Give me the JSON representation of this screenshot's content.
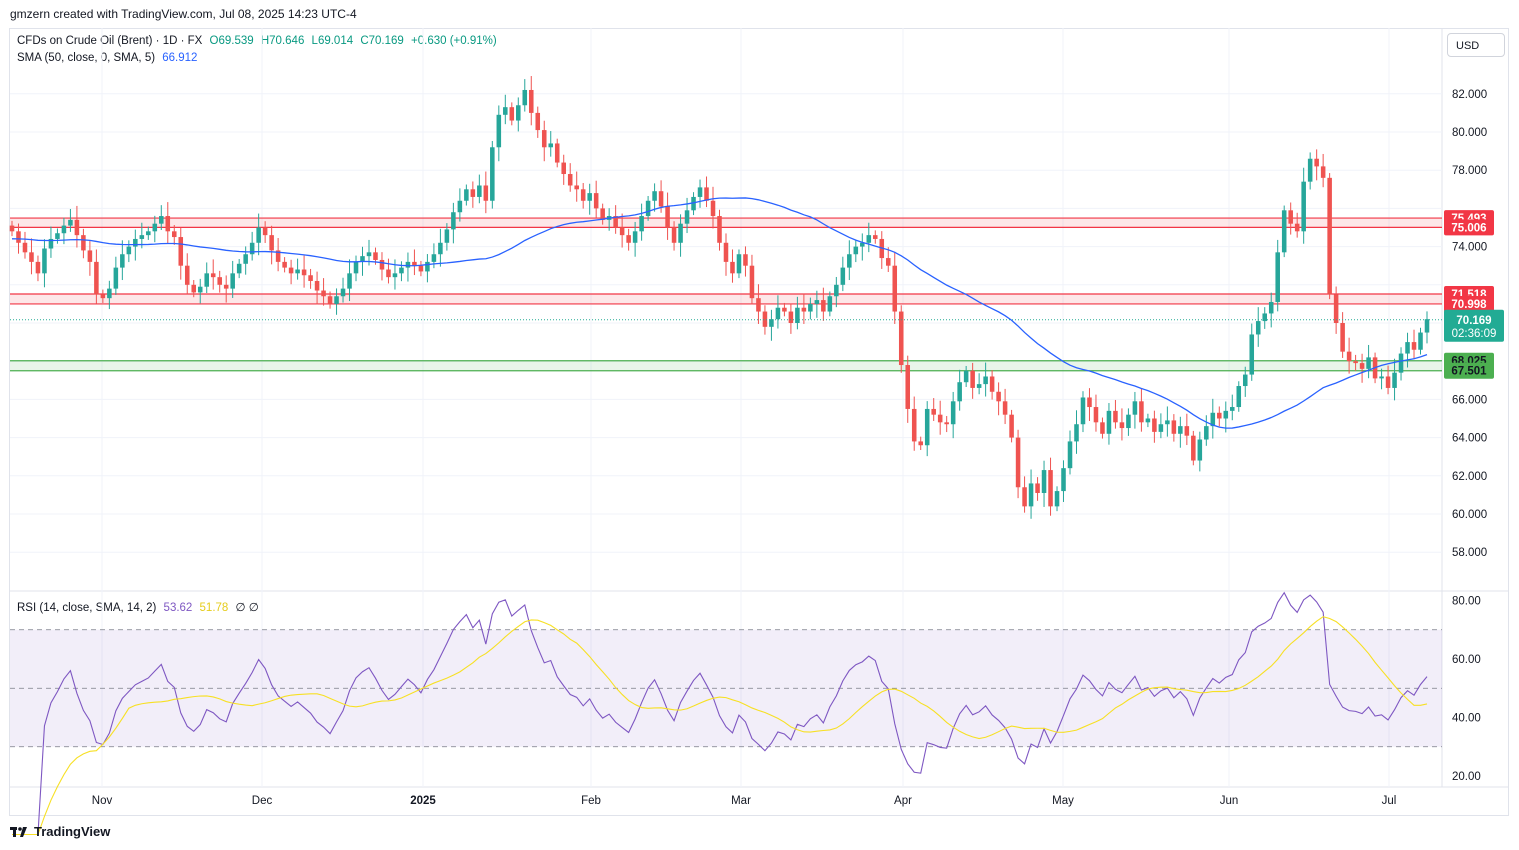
{
  "header": "gmzern created with TradingView.com, Jul 08, 2025 14:23 UTC-4",
  "legend": {
    "symbol": "CFDs on Crude Oil (Brent) · 1D · FX",
    "open": "O69.539",
    "high": "H70.646",
    "low": "L69.014",
    "close": "C70.169",
    "change": "+0.630 (+0.91%)",
    "sma_label": "SMA (50, close, 0, SMA, 5)",
    "sma_value": "66.912",
    "rsi_label": "RSI (14, close, SMA, 14, 2)",
    "rsi_value": "53.62",
    "rsi_ma_value": "51.78",
    "rsi_extra": "∅ ∅"
  },
  "currency": "USD",
  "footer": "TradingView",
  "colors": {
    "up": "#26a69a",
    "down": "#ef5350",
    "sma": "#2962ff",
    "rsi": "#7e57c2",
    "rsi_ma": "#f7e024",
    "resistance": "#f23645",
    "support": "#4caf50",
    "price_tag": "#22ab94"
  },
  "chart_data": [
    {
      "type": "candlestick",
      "title": "CFDs on Crude Oil (Brent)",
      "x_labels": [
        "Nov",
        "Dec",
        "2025",
        "Feb",
        "Mar",
        "Apr",
        "May",
        "Jun",
        "Jul"
      ],
      "y_ticks": [
        "82.000",
        "80.000",
        "78.000",
        "74.000",
        "66.000",
        "64.000",
        "62.000",
        "60.000",
        "58.000"
      ],
      "ylim": [
        56.0,
        85.5
      ],
      "grid": true,
      "closes": [
        74.8,
        74.2,
        73.7,
        73.2,
        72.6,
        73.9,
        74.4,
        74.7,
        75.1,
        75.4,
        74.6,
        73.8,
        73.2,
        71.5,
        71.3,
        71.8,
        72.9,
        73.6,
        74.0,
        74.4,
        74.6,
        74.8,
        75.2,
        75.6,
        74.8,
        74.5,
        73.0,
        72.0,
        71.6,
        71.9,
        72.6,
        72.4,
        72.0,
        71.8,
        72.6,
        73.1,
        73.6,
        74.2,
        75.0,
        74.6,
        73.8,
        73.2,
        72.9,
        72.6,
        72.8,
        72.5,
        72.2,
        71.7,
        71.4,
        71.0,
        71.4,
        71.8,
        72.6,
        73.2,
        73.5,
        73.7,
        73.3,
        72.8,
        72.4,
        72.6,
        72.9,
        73.2,
        73.0,
        72.7,
        73.2,
        73.6,
        74.2,
        74.9,
        75.8,
        76.4,
        77.0,
        76.6,
        77.2,
        76.4,
        79.2,
        80.9,
        81.3,
        80.6,
        81.4,
        82.2,
        81.0,
        80.1,
        79.2,
        79.4,
        78.4,
        77.8,
        77.2,
        77.0,
        76.4,
        76.8,
        76.0,
        75.4,
        75.6,
        75.0,
        74.6,
        74.2,
        74.8,
        75.6,
        76.4,
        76.9,
        76.1,
        75.0,
        74.2,
        75.2,
        75.9,
        76.6,
        77.1,
        76.4,
        75.6,
        74.2,
        73.2,
        72.6,
        73.6,
        73.0,
        71.3,
        70.6,
        69.8,
        70.2,
        70.8,
        70.6,
        70.0,
        70.8,
        70.6,
        71.0,
        71.2,
        70.6,
        71.4,
        72.0,
        72.9,
        73.6,
        74.0,
        74.2,
        74.6,
        74.4,
        73.4,
        73.0,
        70.6,
        67.8,
        65.5,
        63.8,
        63.6,
        65.5,
        65.2,
        64.8,
        64.7,
        65.9,
        66.9,
        67.5,
        66.6,
        66.8,
        67.2,
        66.4,
        65.9,
        65.2,
        64.0,
        61.4,
        60.4,
        61.6,
        61.1,
        62.3,
        60.4,
        61.2,
        62.4,
        63.8,
        64.7,
        66.1,
        65.6,
        64.8,
        64.2,
        65.4,
        64.8,
        64.5,
        65.2,
        65.9,
        64.8,
        65.0,
        64.3,
        64.7,
        64.9,
        64.2,
        64.6,
        64.1,
        62.8,
        63.9,
        64.6,
        65.3,
        65.0,
        65.4,
        65.6,
        66.7,
        67.3,
        69.4,
        70.1,
        70.5,
        71.1,
        73.7,
        75.9,
        75.2,
        74.8,
        77.4,
        78.6,
        78.2,
        77.6,
        71.5,
        70.0,
        68.5,
        68.0,
        67.9,
        67.6,
        68.2,
        67.1,
        67.2,
        66.6,
        67.4,
        68.4,
        69.0,
        68.6,
        69.5,
        70.2
      ],
      "sma50_from_index": 0,
      "levels": [
        {
          "label": "75.493",
          "value": 75.493,
          "kind": "resistance"
        },
        {
          "label": "75.006",
          "value": 75.006,
          "kind": "resistance"
        },
        {
          "label": "71.518",
          "value": 71.518,
          "kind": "resistance"
        },
        {
          "label": "70.998",
          "value": 70.998,
          "kind": "resistance"
        },
        {
          "label": "68.025",
          "value": 68.025,
          "kind": "support"
        },
        {
          "label": "67.501",
          "value": 67.501,
          "kind": "support"
        }
      ],
      "last_price": {
        "label": "70.169",
        "countdown": "02:36:09",
        "value": 70.169
      }
    },
    {
      "type": "line",
      "title": "RSI (14, close, SMA, 14, 2)",
      "y_ticks": [
        "80.00",
        "60.00",
        "40.00",
        "20.00"
      ],
      "ylim": [
        16,
        82
      ],
      "band": [
        30,
        70
      ],
      "midline": 50,
      "series": [
        {
          "name": "RSI",
          "values": []
        },
        {
          "name": "RSI-based MA",
          "values": []
        }
      ]
    }
  ]
}
